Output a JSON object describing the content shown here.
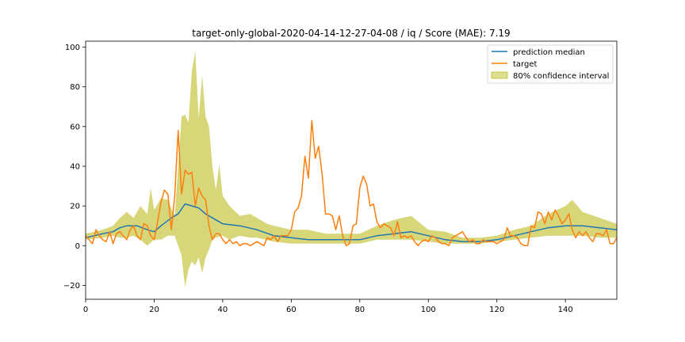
{
  "chart_data": {
    "type": "line",
    "title": "target-only-global-2020-04-14-12-27-04-08 / iq / Score (MAE): 7.19",
    "xlabel": "",
    "ylabel": "",
    "xlim": [
      0,
      155
    ],
    "ylim": [
      -27,
      103
    ],
    "x_ticks": [
      0,
      20,
      40,
      60,
      80,
      100,
      120,
      140
    ],
    "y_ticks": [
      -20,
      0,
      20,
      40,
      60,
      80,
      100
    ],
    "grid": false,
    "legend_position": "top-right",
    "colors": {
      "median": "#1f77b4",
      "target": "#ff7f0e",
      "band": "#bcbd22"
    },
    "series": [
      {
        "name": "prediction median",
        "points": [
          [
            0,
            4
          ],
          [
            5,
            6
          ],
          [
            8,
            7
          ],
          [
            10,
            9
          ],
          [
            12,
            10
          ],
          [
            15,
            10
          ],
          [
            18,
            8
          ],
          [
            20,
            7
          ],
          [
            22,
            10
          ],
          [
            25,
            14
          ],
          [
            27,
            16
          ],
          [
            29,
            21
          ],
          [
            31,
            20
          ],
          [
            33,
            19
          ],
          [
            35,
            16
          ],
          [
            37,
            14
          ],
          [
            40,
            11
          ],
          [
            45,
            10
          ],
          [
            50,
            8
          ],
          [
            55,
            5
          ],
          [
            60,
            4
          ],
          [
            65,
            3
          ],
          [
            70,
            3
          ],
          [
            75,
            3
          ],
          [
            80,
            3
          ],
          [
            85,
            5
          ],
          [
            90,
            6
          ],
          [
            95,
            7
          ],
          [
            100,
            5
          ],
          [
            105,
            3
          ],
          [
            110,
            2
          ],
          [
            115,
            2
          ],
          [
            120,
            3
          ],
          [
            125,
            5
          ],
          [
            130,
            7
          ],
          [
            135,
            9
          ],
          [
            140,
            10
          ],
          [
            145,
            10
          ],
          [
            150,
            9
          ],
          [
            155,
            8
          ]
        ]
      },
      {
        "name": "target",
        "points": [
          [
            0,
            5
          ],
          [
            1,
            3
          ],
          [
            2,
            1
          ],
          [
            3,
            8
          ],
          [
            4,
            5
          ],
          [
            5,
            3
          ],
          [
            6,
            2
          ],
          [
            7,
            7
          ],
          [
            8,
            1
          ],
          [
            9,
            6
          ],
          [
            10,
            7
          ],
          [
            11,
            5
          ],
          [
            12,
            3
          ],
          [
            13,
            8
          ],
          [
            14,
            10
          ],
          [
            15,
            5
          ],
          [
            16,
            3
          ],
          [
            17,
            11
          ],
          [
            18,
            10
          ],
          [
            19,
            5
          ],
          [
            20,
            3
          ],
          [
            21,
            12
          ],
          [
            22,
            22
          ],
          [
            23,
            28
          ],
          [
            24,
            26
          ],
          [
            25,
            8
          ],
          [
            26,
            25
          ],
          [
            27,
            58
          ],
          [
            28,
            26
          ],
          [
            29,
            38
          ],
          [
            30,
            36
          ],
          [
            31,
            37
          ],
          [
            32,
            20
          ],
          [
            33,
            29
          ],
          [
            34,
            25
          ],
          [
            35,
            23
          ],
          [
            36,
            10
          ],
          [
            37,
            3
          ],
          [
            38,
            6
          ],
          [
            39,
            6
          ],
          [
            40,
            3
          ],
          [
            41,
            1
          ],
          [
            42,
            3
          ],
          [
            43,
            1
          ],
          [
            44,
            2
          ],
          [
            45,
            0
          ],
          [
            46,
            1
          ],
          [
            47,
            1
          ],
          [
            48,
            0
          ],
          [
            50,
            2
          ],
          [
            52,
            0
          ],
          [
            53,
            4
          ],
          [
            54,
            3
          ],
          [
            55,
            5
          ],
          [
            56,
            2
          ],
          [
            57,
            5
          ],
          [
            58,
            5
          ],
          [
            59,
            5
          ],
          [
            60,
            8
          ],
          [
            61,
            17
          ],
          [
            62,
            19
          ],
          [
            63,
            25
          ],
          [
            64,
            45
          ],
          [
            65,
            34
          ],
          [
            66,
            63
          ],
          [
            67,
            44
          ],
          [
            68,
            50
          ],
          [
            69,
            36
          ],
          [
            70,
            16
          ],
          [
            71,
            16
          ],
          [
            72,
            15
          ],
          [
            73,
            8
          ],
          [
            74,
            15
          ],
          [
            75,
            5
          ],
          [
            76,
            0
          ],
          [
            77,
            1
          ],
          [
            78,
            10
          ],
          [
            79,
            11
          ],
          [
            80,
            29
          ],
          [
            81,
            35
          ],
          [
            82,
            31
          ],
          [
            83,
            20
          ],
          [
            84,
            21
          ],
          [
            85,
            12
          ],
          [
            86,
            9
          ],
          [
            87,
            11
          ],
          [
            88,
            10
          ],
          [
            89,
            9
          ],
          [
            90,
            5
          ],
          [
            91,
            12
          ],
          [
            92,
            4
          ],
          [
            93,
            5
          ],
          [
            94,
            4
          ],
          [
            95,
            5
          ],
          [
            96,
            2
          ],
          [
            97,
            0
          ],
          [
            98,
            2
          ],
          [
            99,
            3
          ],
          [
            100,
            2
          ],
          [
            101,
            5
          ],
          [
            102,
            4
          ],
          [
            103,
            2
          ],
          [
            104,
            1
          ],
          [
            105,
            1
          ],
          [
            106,
            0
          ],
          [
            107,
            4
          ],
          [
            108,
            5
          ],
          [
            109,
            6
          ],
          [
            110,
            7
          ],
          [
            111,
            4
          ],
          [
            112,
            2
          ],
          [
            113,
            3
          ],
          [
            114,
            1
          ],
          [
            115,
            1
          ],
          [
            116,
            3
          ],
          [
            117,
            2
          ],
          [
            118,
            2
          ],
          [
            119,
            2
          ],
          [
            120,
            1
          ],
          [
            121,
            2
          ],
          [
            122,
            3
          ],
          [
            123,
            9
          ],
          [
            124,
            5
          ],
          [
            125,
            5
          ],
          [
            126,
            4
          ],
          [
            127,
            1
          ],
          [
            128,
            0
          ],
          [
            129,
            0
          ],
          [
            130,
            10
          ],
          [
            131,
            9
          ],
          [
            132,
            17
          ],
          [
            133,
            16
          ],
          [
            134,
            11
          ],
          [
            135,
            17
          ],
          [
            136,
            13
          ],
          [
            137,
            18
          ],
          [
            138,
            15
          ],
          [
            139,
            11
          ],
          [
            140,
            13
          ],
          [
            141,
            16
          ],
          [
            142,
            8
          ],
          [
            143,
            4
          ],
          [
            144,
            7
          ],
          [
            145,
            5
          ],
          [
            146,
            7
          ],
          [
            147,
            4
          ],
          [
            148,
            2
          ],
          [
            149,
            6
          ],
          [
            150,
            6
          ],
          [
            151,
            5
          ],
          [
            152,
            8
          ],
          [
            153,
            1
          ],
          [
            154,
            1
          ],
          [
            155,
            4
          ]
        ]
      }
    ],
    "confidence_interval": {
      "name": "80% confidence interval",
      "upper": [
        [
          0,
          6
        ],
        [
          5,
          8
        ],
        [
          8,
          10
        ],
        [
          10,
          14
        ],
        [
          12,
          17
        ],
        [
          14,
          14
        ],
        [
          16,
          20
        ],
        [
          18,
          16
        ],
        [
          19,
          29
        ],
        [
          20,
          18
        ],
        [
          22,
          24
        ],
        [
          24,
          23
        ],
        [
          26,
          15
        ],
        [
          28,
          65
        ],
        [
          29,
          66
        ],
        [
          30,
          62
        ],
        [
          31,
          88
        ],
        [
          32,
          98
        ],
        [
          33,
          64
        ],
        [
          34,
          86
        ],
        [
          35,
          65
        ],
        [
          36,
          60
        ],
        [
          37,
          40
        ],
        [
          38,
          28
        ],
        [
          39,
          41
        ],
        [
          40,
          25
        ],
        [
          42,
          20
        ],
        [
          45,
          15
        ],
        [
          48,
          16
        ],
        [
          50,
          14
        ],
        [
          53,
          11
        ],
        [
          55,
          10
        ],
        [
          60,
          8
        ],
        [
          65,
          8
        ],
        [
          70,
          6
        ],
        [
          75,
          6
        ],
        [
          80,
          6
        ],
        [
          85,
          10
        ],
        [
          90,
          13
        ],
        [
          95,
          15
        ],
        [
          100,
          8
        ],
        [
          105,
          7
        ],
        [
          110,
          4
        ],
        [
          115,
          4
        ],
        [
          120,
          5
        ],
        [
          125,
          8
        ],
        [
          130,
          10
        ],
        [
          135,
          16
        ],
        [
          140,
          20
        ],
        [
          142,
          23
        ],
        [
          145,
          17
        ],
        [
          150,
          14
        ],
        [
          155,
          11
        ]
      ],
      "lower": [
        [
          0,
          3
        ],
        [
          5,
          4
        ],
        [
          8,
          5
        ],
        [
          10,
          4
        ],
        [
          12,
          4
        ],
        [
          14,
          5
        ],
        [
          16,
          3
        ],
        [
          18,
          0
        ],
        [
          20,
          3
        ],
        [
          22,
          3
        ],
        [
          24,
          5
        ],
        [
          26,
          5
        ],
        [
          28,
          -5
        ],
        [
          29,
          -21
        ],
        [
          30,
          -12
        ],
        [
          31,
          -8
        ],
        [
          32,
          -10
        ],
        [
          33,
          -6
        ],
        [
          34,
          -14
        ],
        [
          35,
          -6
        ],
        [
          36,
          -2
        ],
        [
          37,
          3
        ],
        [
          38,
          4
        ],
        [
          40,
          5
        ],
        [
          42,
          3
        ],
        [
          45,
          5
        ],
        [
          48,
          4
        ],
        [
          50,
          4
        ],
        [
          55,
          2
        ],
        [
          60,
          1
        ],
        [
          65,
          1
        ],
        [
          70,
          1
        ],
        [
          75,
          1
        ],
        [
          80,
          1
        ],
        [
          85,
          3
        ],
        [
          90,
          3
        ],
        [
          95,
          3
        ],
        [
          100,
          2
        ],
        [
          105,
          1
        ],
        [
          110,
          1
        ],
        [
          115,
          1
        ],
        [
          120,
          2
        ],
        [
          125,
          3
        ],
        [
          130,
          4
        ],
        [
          135,
          5
        ],
        [
          140,
          5
        ],
        [
          145,
          5
        ],
        [
          150,
          4
        ],
        [
          155,
          4
        ]
      ]
    }
  }
}
